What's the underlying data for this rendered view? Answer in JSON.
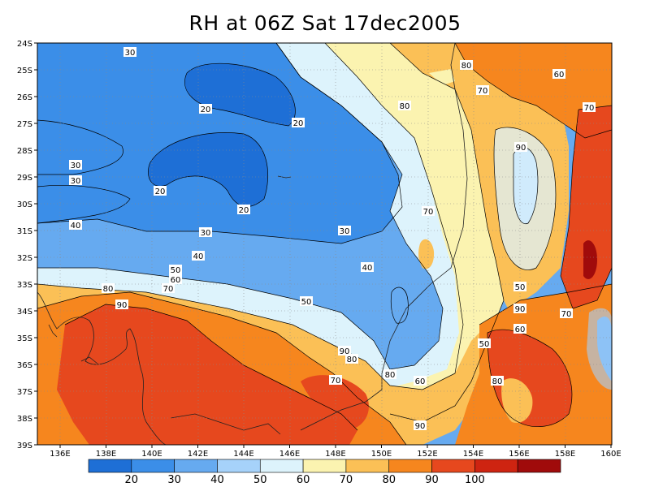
{
  "title": "RH at 06Z Sat 17dec2005",
  "map": {
    "lon_ticks": [
      "136E",
      "138E",
      "140E",
      "142E",
      "144E",
      "146E",
      "148E",
      "150E",
      "152E",
      "154E",
      "156E",
      "158E",
      "160E"
    ],
    "lat_ticks": [
      "24S",
      "25S",
      "26S",
      "27S",
      "28S",
      "29S",
      "30S",
      "31S",
      "32S",
      "33S",
      "34S",
      "35S",
      "36S",
      "37S",
      "38S",
      "39S"
    ],
    "lon_range": [
      135,
      160
    ],
    "lat_range": [
      -24,
      -39
    ],
    "grid": "dotted"
  },
  "contour_labels": [
    "30",
    "20",
    "20",
    "30",
    "30",
    "20",
    "20",
    "40",
    "30",
    "30",
    "50",
    "60",
    "70",
    "40",
    "50",
    "40",
    "80",
    "90",
    "70",
    "80",
    "90",
    "70",
    "80",
    "60",
    "70",
    "50",
    "90",
    "80",
    "60",
    "50",
    "60",
    "70",
    "80",
    "90",
    "90",
    "80",
    "70"
  ],
  "colorbar": {
    "labels": [
      "20",
      "30",
      "40",
      "50",
      "60",
      "70",
      "80",
      "90",
      "100"
    ],
    "colors": [
      "#1e6fd6",
      "#3b8ee8",
      "#66aaf0",
      "#a6d2fa",
      "#ddf3fc",
      "#fbf3b0",
      "#fbc056",
      "#f6861e",
      "#e6481e",
      "#ce2411",
      "#a00b0b"
    ]
  }
}
